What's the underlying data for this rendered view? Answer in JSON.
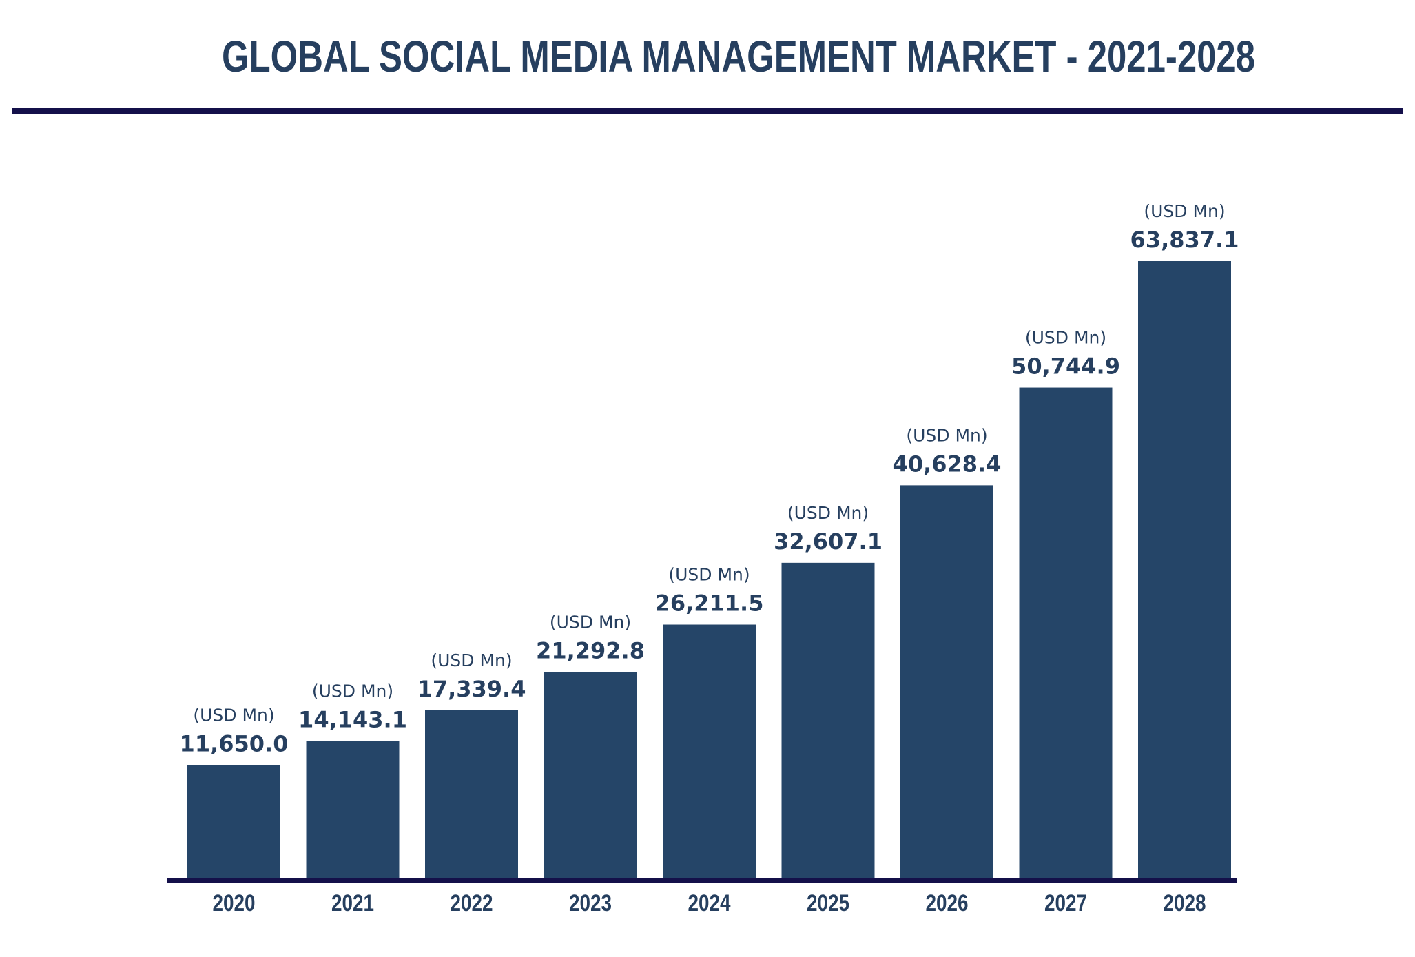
{
  "chart_data": {
    "type": "bar",
    "title": "GLOBAL SOCIAL MEDIA MANAGEMENT MARKET - 2021-2028",
    "categories": [
      "2020",
      "2021",
      "2022",
      "2023",
      "2024",
      "2025",
      "2026",
      "2027",
      "2028"
    ],
    "values": [
      11650.0,
      14143.1,
      17339.4,
      21292.8,
      26211.5,
      32607.1,
      40628.4,
      50744.9,
      63837.1
    ],
    "value_labels": [
      "11,650.0",
      "14,143.1",
      "17,339.4",
      "21,292.8",
      "26,211.5",
      "32,607.1",
      "40,628.4",
      "50,744.9",
      "63,837.1"
    ],
    "unit_label": "(USD Mn)",
    "xlabel": "",
    "ylabel": "",
    "ylim": [
      0,
      63837.1
    ],
    "grid": false,
    "legend": "none",
    "colors": {
      "bar": "#254568",
      "text": "#263f5f",
      "rule": "#14104a"
    }
  }
}
